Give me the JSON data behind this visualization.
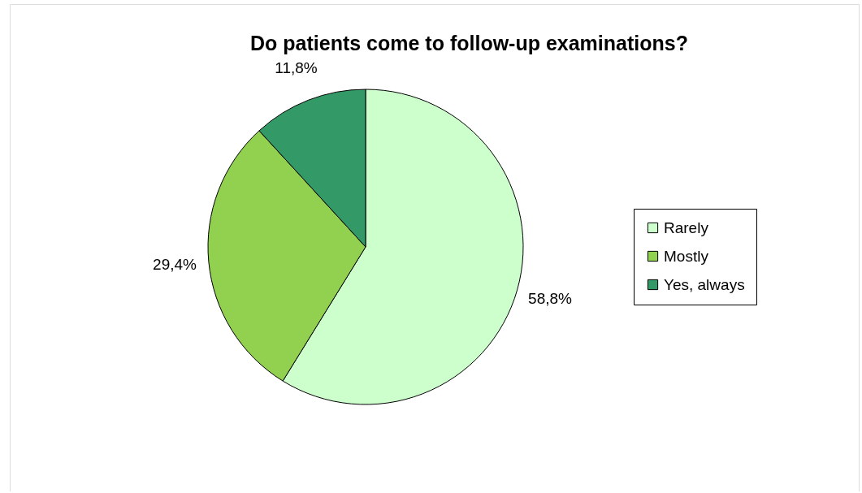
{
  "chart_data": {
    "type": "pie",
    "title": "Do patients come to follow-up examinations?",
    "categories": [
      "Rarely",
      "Mostly",
      "Yes, always"
    ],
    "values": [
      58.8,
      29.4,
      11.8
    ],
    "colors": [
      "#ccffcc",
      "#92d050",
      "#339966"
    ],
    "value_labels": [
      "58,8%",
      "29,4%",
      "11,8%"
    ],
    "legend": "right"
  }
}
